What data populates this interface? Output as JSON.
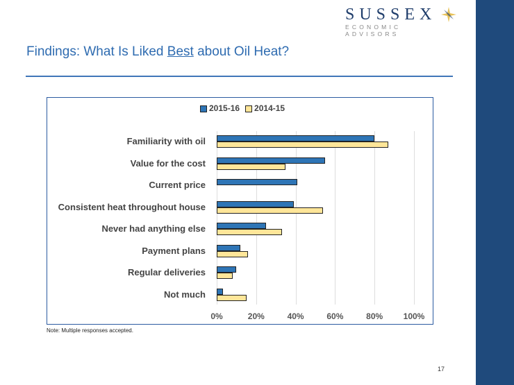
{
  "logo": {
    "name": "SUSSEX",
    "subtitle": "ECONOMIC ADVISORS"
  },
  "title": {
    "prefix": "Findings: What Is Liked ",
    "emphasis": "Best",
    "suffix": " about Oil Heat?"
  },
  "note": "Note: Multiple responses accepted.",
  "page_number": "17",
  "colors": {
    "series1": "#2e75b6",
    "series2": "#ffe699",
    "sidebar": "#1f4a7c",
    "title": "#2e6bb0"
  },
  "chart_data": {
    "type": "bar",
    "orientation": "horizontal",
    "categories": [
      "Familiarity with oil",
      "Value for the cost",
      "Current price",
      "Consistent heat throughout house",
      "Never had anything else",
      "Payment plans",
      "Regular deliveries",
      "Not much"
    ],
    "series": [
      {
        "name": "2015-16",
        "values": [
          80,
          55,
          41,
          39,
          25,
          12,
          10,
          3
        ]
      },
      {
        "name": "2014-15",
        "values": [
          87,
          35,
          0,
          54,
          33,
          16,
          8,
          15
        ]
      }
    ],
    "xlim": [
      0,
      100
    ],
    "ticks": [
      "0%",
      "20%",
      "40%",
      "60%",
      "80%",
      "100%"
    ],
    "legend": "top",
    "grid": true
  }
}
